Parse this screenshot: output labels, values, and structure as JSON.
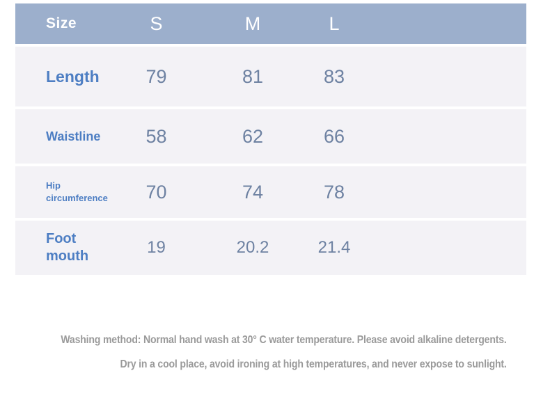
{
  "size_table": {
    "header": {
      "row_label": "Size",
      "columns": [
        "S",
        "M",
        "L"
      ]
    },
    "rows": [
      {
        "label": "Length",
        "values": [
          "79",
          "81",
          "83"
        ]
      },
      {
        "label": "Waistline",
        "values": [
          "58",
          "62",
          "66"
        ]
      },
      {
        "label": "Hip circumference",
        "values": [
          "70",
          "74",
          "78"
        ]
      },
      {
        "label": "Foot mouth",
        "values": [
          "19",
          "20.2",
          "21.4"
        ]
      }
    ]
  },
  "care_instructions": {
    "line1": "Washing method: Normal hand wash at 30° C water temperature. Please avoid alkaline detergents.",
    "line2": "Dry in a cool place, avoid ironing at high temperatures, and never expose to sunlight."
  },
  "colors": {
    "header_bg": "#9cafcc",
    "header_text": "#ffffff",
    "row_bg": "#f3f2f6",
    "label_text": "#4d7ec3",
    "value_text": "#6e82a2",
    "care_text": "#9a9a9a"
  }
}
